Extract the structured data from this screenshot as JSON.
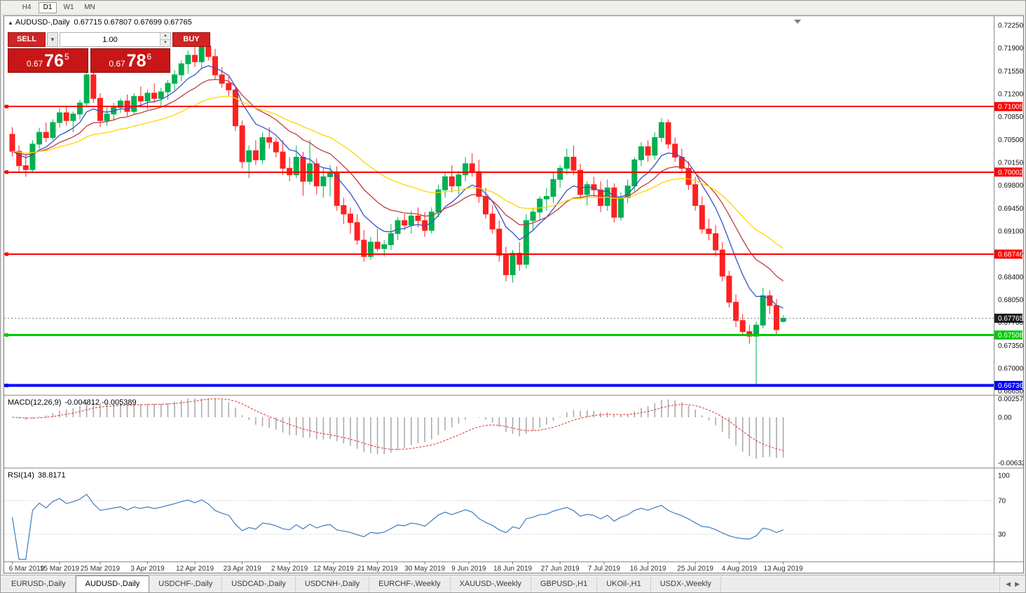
{
  "toolbar": {
    "timeframes": [
      {
        "label": "H4",
        "active": false
      },
      {
        "label": "D1",
        "active": true
      },
      {
        "label": "W1",
        "active": false
      },
      {
        "label": "MN",
        "active": false
      }
    ]
  },
  "chart": {
    "title": "AUDUSD-,Daily",
    "ohlc": "0.67715 0.67807 0.67699 0.67765"
  },
  "trade_panel": {
    "sell_label": "SELL",
    "buy_label": "BUY",
    "volume": "1.00",
    "sell_price": {
      "prefix": "0.67",
      "big": "76",
      "sup": "5"
    },
    "buy_price": {
      "prefix": "0.67",
      "big": "78",
      "sup": "6"
    }
  },
  "chart_data": {
    "type": "candlestick",
    "symbol": "AUDUSD-",
    "timeframe": "Daily",
    "colors": {
      "bull": "#00b050",
      "bear": "#ff2020",
      "ma_fast": "#3850c8",
      "ma_mid": "#c23b3b",
      "ma_slow": "#ffd400",
      "macd_hist": "#ababab",
      "macd_signal": "#e03030",
      "rsi": "#3e7bbf",
      "resistance": "#ff0000",
      "support": "#00cc00",
      "target": "#0000ff",
      "bid_box": "#1c1c1c"
    },
    "price_axis": [
      "0.72250",
      "0.71900",
      "0.71550",
      "0.71200",
      "0.70850",
      "0.70500",
      "0.70150",
      "0.69800",
      "0.69450",
      "0.69100",
      "0.68750",
      "0.68400",
      "0.68050",
      "0.67700",
      "0.67350",
      "0.67000",
      "0.66650"
    ],
    "hlines": [
      {
        "price": 0.71005,
        "label": "0.71005",
        "color": "#ff0000",
        "width": 2
      },
      {
        "price": 0.70002,
        "label": "0.70002",
        "color": "#ff0000",
        "width": 2
      },
      {
        "price": 0.68746,
        "label": "0.68746",
        "color": "#ff0000",
        "width": 2
      },
      {
        "price": 0.67508,
        "label": "0.67508",
        "color": "#00cc00",
        "width": 3
      },
      {
        "price": 0.66736,
        "label": "0.66736",
        "color": "#0000ff",
        "width": 4
      }
    ],
    "bid": {
      "price": 0.67765,
      "label": "0.67765"
    },
    "moving_averages": [
      {
        "period": 8,
        "color": "#3850c8"
      },
      {
        "period": 16,
        "color": "#c23b3b"
      },
      {
        "period": 32,
        "color": "#ffd400"
      }
    ],
    "macd": {
      "name": "MACD(12,26,9)",
      "values": "-0.004812 -0.005389",
      "axis": [
        {
          "v": 0.002574,
          "t": "0.002574"
        },
        {
          "v": 0,
          "t": "0.00"
        },
        {
          "v": -0.006326,
          "t": "-0.006326"
        }
      ]
    },
    "rsi": {
      "name": "RSI(14)",
      "value": "38.8171",
      "levels": [
        70,
        30
      ],
      "axis": [
        {
          "v": 100,
          "t": "100"
        },
        {
          "v": 70,
          "t": "70"
        },
        {
          "v": 30,
          "t": "30"
        }
      ]
    },
    "dates": [
      {
        "label": "6 Mar 2019",
        "i": 0
      },
      {
        "label": "15 Mar 2019",
        "i": 7
      },
      {
        "label": "25 Mar 2019",
        "i": 13
      },
      {
        "label": "3 Apr 2019",
        "i": 20
      },
      {
        "label": "12 Apr 2019",
        "i": 27
      },
      {
        "label": "23 Apr 2019",
        "i": 34
      },
      {
        "label": "2 May 2019",
        "i": 41
      },
      {
        "label": "12 May 2019",
        "i": 47.5
      },
      {
        "label": "21 May 2019",
        "i": 54
      },
      {
        "label": "30 May 2019",
        "i": 61
      },
      {
        "label": "9 Jun 2019",
        "i": 67.5
      },
      {
        "label": "18 Jun 2019",
        "i": 74
      },
      {
        "label": "27 Jun 2019",
        "i": 81
      },
      {
        "label": "7 Jul 2019",
        "i": 87.5
      },
      {
        "label": "16 Jul 2019",
        "i": 94
      },
      {
        "label": "25 Jul 2019",
        "i": 101
      },
      {
        "label": "4 Aug 2019",
        "i": 107.5
      },
      {
        "label": "13 Aug 2019",
        "i": 114
      }
    ],
    "candles": [
      [
        0.7058,
        0.7069,
        0.7024,
        0.7032
      ],
      [
        0.7032,
        0.7041,
        0.7001,
        0.701
      ],
      [
        0.701,
        0.7028,
        0.6993,
        0.7004
      ],
      [
        0.7004,
        0.7049,
        0.6999,
        0.7043
      ],
      [
        0.7043,
        0.7068,
        0.7036,
        0.7061
      ],
      [
        0.7061,
        0.7076,
        0.7046,
        0.7053
      ],
      [
        0.7053,
        0.7081,
        0.7049,
        0.7076
      ],
      [
        0.7076,
        0.7098,
        0.7068,
        0.7091
      ],
      [
        0.7091,
        0.7101,
        0.7071,
        0.7079
      ],
      [
        0.7079,
        0.7093,
        0.7061,
        0.7089
      ],
      [
        0.7089,
        0.7111,
        0.7081,
        0.7106
      ],
      [
        0.7106,
        0.7156,
        0.7101,
        0.7149
      ],
      [
        0.7149,
        0.7168,
        0.7106,
        0.7113
      ],
      [
        0.7113,
        0.7121,
        0.7069,
        0.7079
      ],
      [
        0.7079,
        0.7099,
        0.7071,
        0.7089
      ],
      [
        0.7089,
        0.7106,
        0.7079,
        0.7099
      ],
      [
        0.7099,
        0.7113,
        0.7091,
        0.7109
      ],
      [
        0.7109,
        0.7119,
        0.7086,
        0.7093
      ],
      [
        0.7093,
        0.7121,
        0.7089,
        0.7116
      ],
      [
        0.7116,
        0.7131,
        0.7101,
        0.7109
      ],
      [
        0.7109,
        0.7126,
        0.7096,
        0.7121
      ],
      [
        0.7121,
        0.7136,
        0.7106,
        0.7113
      ],
      [
        0.7113,
        0.7129,
        0.7099,
        0.7123
      ],
      [
        0.7123,
        0.7141,
        0.7111,
        0.7136
      ],
      [
        0.7136,
        0.7156,
        0.7126,
        0.7149
      ],
      [
        0.7149,
        0.7171,
        0.7139,
        0.7166
      ],
      [
        0.7166,
        0.7186,
        0.7151,
        0.7179
      ],
      [
        0.7179,
        0.7196,
        0.7161,
        0.7169
      ],
      [
        0.7169,
        0.7206,
        0.7159,
        0.7193
      ],
      [
        0.7193,
        0.7201,
        0.7171,
        0.7177
      ],
      [
        0.7177,
        0.7189,
        0.7141,
        0.7149
      ],
      [
        0.7149,
        0.7161,
        0.7129,
        0.7136
      ],
      [
        0.7136,
        0.7146,
        0.7116,
        0.7126
      ],
      [
        0.7126,
        0.7133,
        0.7063,
        0.7071
      ],
      [
        0.7071,
        0.7079,
        0.7006,
        0.7016
      ],
      [
        0.7016,
        0.7041,
        0.6991,
        0.7033
      ],
      [
        0.7033,
        0.7049,
        0.7011,
        0.7019
      ],
      [
        0.7019,
        0.7061,
        0.7013,
        0.7053
      ],
      [
        0.7053,
        0.7069,
        0.7036,
        0.7046
      ],
      [
        0.7046,
        0.7053,
        0.7023,
        0.7031
      ],
      [
        0.7031,
        0.7049,
        0.6996,
        0.7006
      ],
      [
        0.7006,
        0.7023,
        0.6986,
        0.6996
      ],
      [
        0.6996,
        0.7041,
        0.6991,
        0.7023
      ],
      [
        0.7023,
        0.7031,
        0.6964,
        0.6986
      ],
      [
        0.6986,
        0.7049,
        0.6981,
        0.7013
      ],
      [
        0.7013,
        0.7021,
        0.6966,
        0.6979
      ],
      [
        0.6979,
        0.7006,
        0.6961,
        0.6993
      ],
      [
        0.6993,
        0.7011,
        0.6963,
        0.6999
      ],
      [
        0.6999,
        0.7009,
        0.6941,
        0.6949
      ],
      [
        0.6949,
        0.6961,
        0.6921,
        0.6936
      ],
      [
        0.6936,
        0.6946,
        0.6906,
        0.6923
      ],
      [
        0.6923,
        0.6936,
        0.6889,
        0.6896
      ],
      [
        0.6896,
        0.6911,
        0.6863,
        0.6871
      ],
      [
        0.6871,
        0.6901,
        0.6866,
        0.6893
      ],
      [
        0.6893,
        0.6913,
        0.6879,
        0.6883
      ],
      [
        0.6883,
        0.6896,
        0.6871,
        0.6889
      ],
      [
        0.6889,
        0.6921,
        0.6881,
        0.6906
      ],
      [
        0.6906,
        0.6931,
        0.6896,
        0.6926
      ],
      [
        0.6926,
        0.6936,
        0.6911,
        0.6919
      ],
      [
        0.6919,
        0.6941,
        0.6906,
        0.6933
      ],
      [
        0.6933,
        0.6946,
        0.6916,
        0.6926
      ],
      [
        0.6926,
        0.6939,
        0.6901,
        0.6911
      ],
      [
        0.6911,
        0.6946,
        0.6906,
        0.6939
      ],
      [
        0.6939,
        0.6981,
        0.6931,
        0.6973
      ],
      [
        0.6973,
        0.7001,
        0.6961,
        0.6993
      ],
      [
        0.6993,
        0.7011,
        0.6969,
        0.6979
      ],
      [
        0.6979,
        0.7001,
        0.6966,
        0.6996
      ],
      [
        0.6996,
        0.7023,
        0.6986,
        0.7013
      ],
      [
        0.7013,
        0.7029,
        0.6993,
        0.7001
      ],
      [
        0.7001,
        0.7019,
        0.6953,
        0.6963
      ],
      [
        0.6963,
        0.6976,
        0.6929,
        0.6936
      ],
      [
        0.6936,
        0.6949,
        0.6906,
        0.6913
      ],
      [
        0.6913,
        0.6926,
        0.6863,
        0.6873
      ],
      [
        0.6873,
        0.6886,
        0.6833,
        0.6843
      ],
      [
        0.6843,
        0.6881,
        0.6831,
        0.6876
      ],
      [
        0.6876,
        0.6893,
        0.6849,
        0.6859
      ],
      [
        0.6859,
        0.6936,
        0.6853,
        0.6926
      ],
      [
        0.6926,
        0.6946,
        0.6911,
        0.6939
      ],
      [
        0.6939,
        0.6963,
        0.6926,
        0.6959
      ],
      [
        0.6959,
        0.6976,
        0.6941,
        0.6963
      ],
      [
        0.6963,
        0.6999,
        0.6953,
        0.6989
      ],
      [
        0.6989,
        0.7011,
        0.6976,
        0.7006
      ],
      [
        0.7006,
        0.7036,
        0.6996,
        0.7023
      ],
      [
        0.7023,
        0.7041,
        0.6996,
        0.7003
      ],
      [
        0.7003,
        0.7013,
        0.6959,
        0.6966
      ],
      [
        0.6966,
        0.6986,
        0.6949,
        0.6981
      ],
      [
        0.6981,
        0.6993,
        0.6961,
        0.6973
      ],
      [
        0.6973,
        0.6986,
        0.6939,
        0.6949
      ],
      [
        0.6949,
        0.6989,
        0.6941,
        0.6976
      ],
      [
        0.6976,
        0.6983,
        0.6923,
        0.6931
      ],
      [
        0.6931,
        0.6969,
        0.6926,
        0.6961
      ],
      [
        0.6961,
        0.6989,
        0.6953,
        0.6979
      ],
      [
        0.6979,
        0.7023,
        0.6971,
        0.7019
      ],
      [
        0.7019,
        0.7046,
        0.7009,
        0.7039
      ],
      [
        0.7039,
        0.7049,
        0.7016,
        0.7026
      ],
      [
        0.7026,
        0.7061,
        0.7019,
        0.7053
      ],
      [
        0.7053,
        0.7083,
        0.7046,
        0.7076
      ],
      [
        0.7076,
        0.7081,
        0.7036,
        0.7043
      ],
      [
        0.7043,
        0.7053,
        0.7016,
        0.7023
      ],
      [
        0.7023,
        0.7036,
        0.6999,
        0.7006
      ],
      [
        0.7006,
        0.7016,
        0.6973,
        0.6981
      ],
      [
        0.6981,
        0.6993,
        0.6941,
        0.6949
      ],
      [
        0.6949,
        0.6963,
        0.6906,
        0.6913
      ],
      [
        0.6913,
        0.6929,
        0.6896,
        0.6906
      ],
      [
        0.6906,
        0.6919,
        0.6871,
        0.6881
      ],
      [
        0.6881,
        0.6893,
        0.6833,
        0.6841
      ],
      [
        0.6841,
        0.6849,
        0.6793,
        0.6801
      ],
      [
        0.6801,
        0.6813,
        0.6763,
        0.6773
      ],
      [
        0.6773,
        0.6783,
        0.6749,
        0.6756
      ],
      [
        0.6756,
        0.6766,
        0.6737,
        0.6749
      ],
      [
        0.6749,
        0.6771,
        0.6674,
        0.6766
      ],
      [
        0.6766,
        0.6823,
        0.6761,
        0.6811
      ],
      [
        0.6811,
        0.6819,
        0.6783,
        0.6796
      ],
      [
        0.6796,
        0.6806,
        0.6749,
        0.6759
      ],
      [
        0.67715,
        0.67807,
        0.67699,
        0.67765
      ]
    ]
  },
  "tabs": [
    {
      "label": "EURUSD-,Daily",
      "active": false
    },
    {
      "label": "AUDUSD-,Daily",
      "active": true
    },
    {
      "label": "USDCHF-,Daily",
      "active": false
    },
    {
      "label": "USDCAD-,Daily",
      "active": false
    },
    {
      "label": "USDCNH-,Daily",
      "active": false
    },
    {
      "label": "EURCHF-,Weekly",
      "active": false
    },
    {
      "label": "XAUUSD-,Weekly",
      "active": false
    },
    {
      "label": "GBPUSD-,H1",
      "active": false
    },
    {
      "label": "UKOil-,H1",
      "active": false
    },
    {
      "label": "USDX-,Weekly",
      "active": false
    }
  ]
}
